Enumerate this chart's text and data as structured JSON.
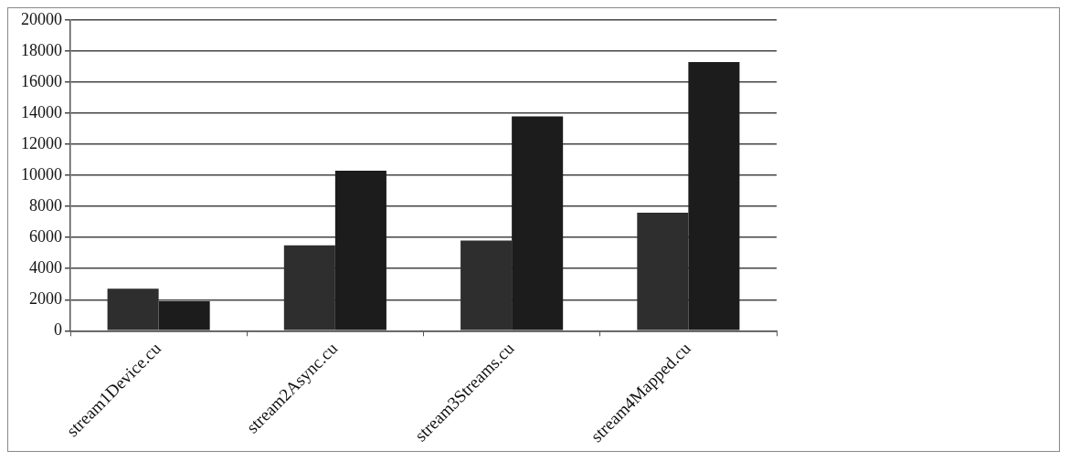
{
  "chart_data": {
    "type": "bar",
    "categories": [
      "stream1Device.cu",
      "stream2Async.cu",
      "stream3Streams.cu",
      "stream4Mapped.cu"
    ],
    "series": [
      {
        "color": "#2e2e2e",
        "values": [
          2700,
          5500,
          5800,
          7600
        ]
      },
      {
        "color": "#1c1c1c",
        "values": [
          1900,
          10300,
          13800,
          17300
        ]
      }
    ],
    "ylim": [
      0,
      20000
    ],
    "yticks": [
      0,
      2000,
      4000,
      6000,
      8000,
      10000,
      12000,
      14000,
      16000,
      18000,
      20000
    ],
    "grid": "y",
    "legend": false
  }
}
